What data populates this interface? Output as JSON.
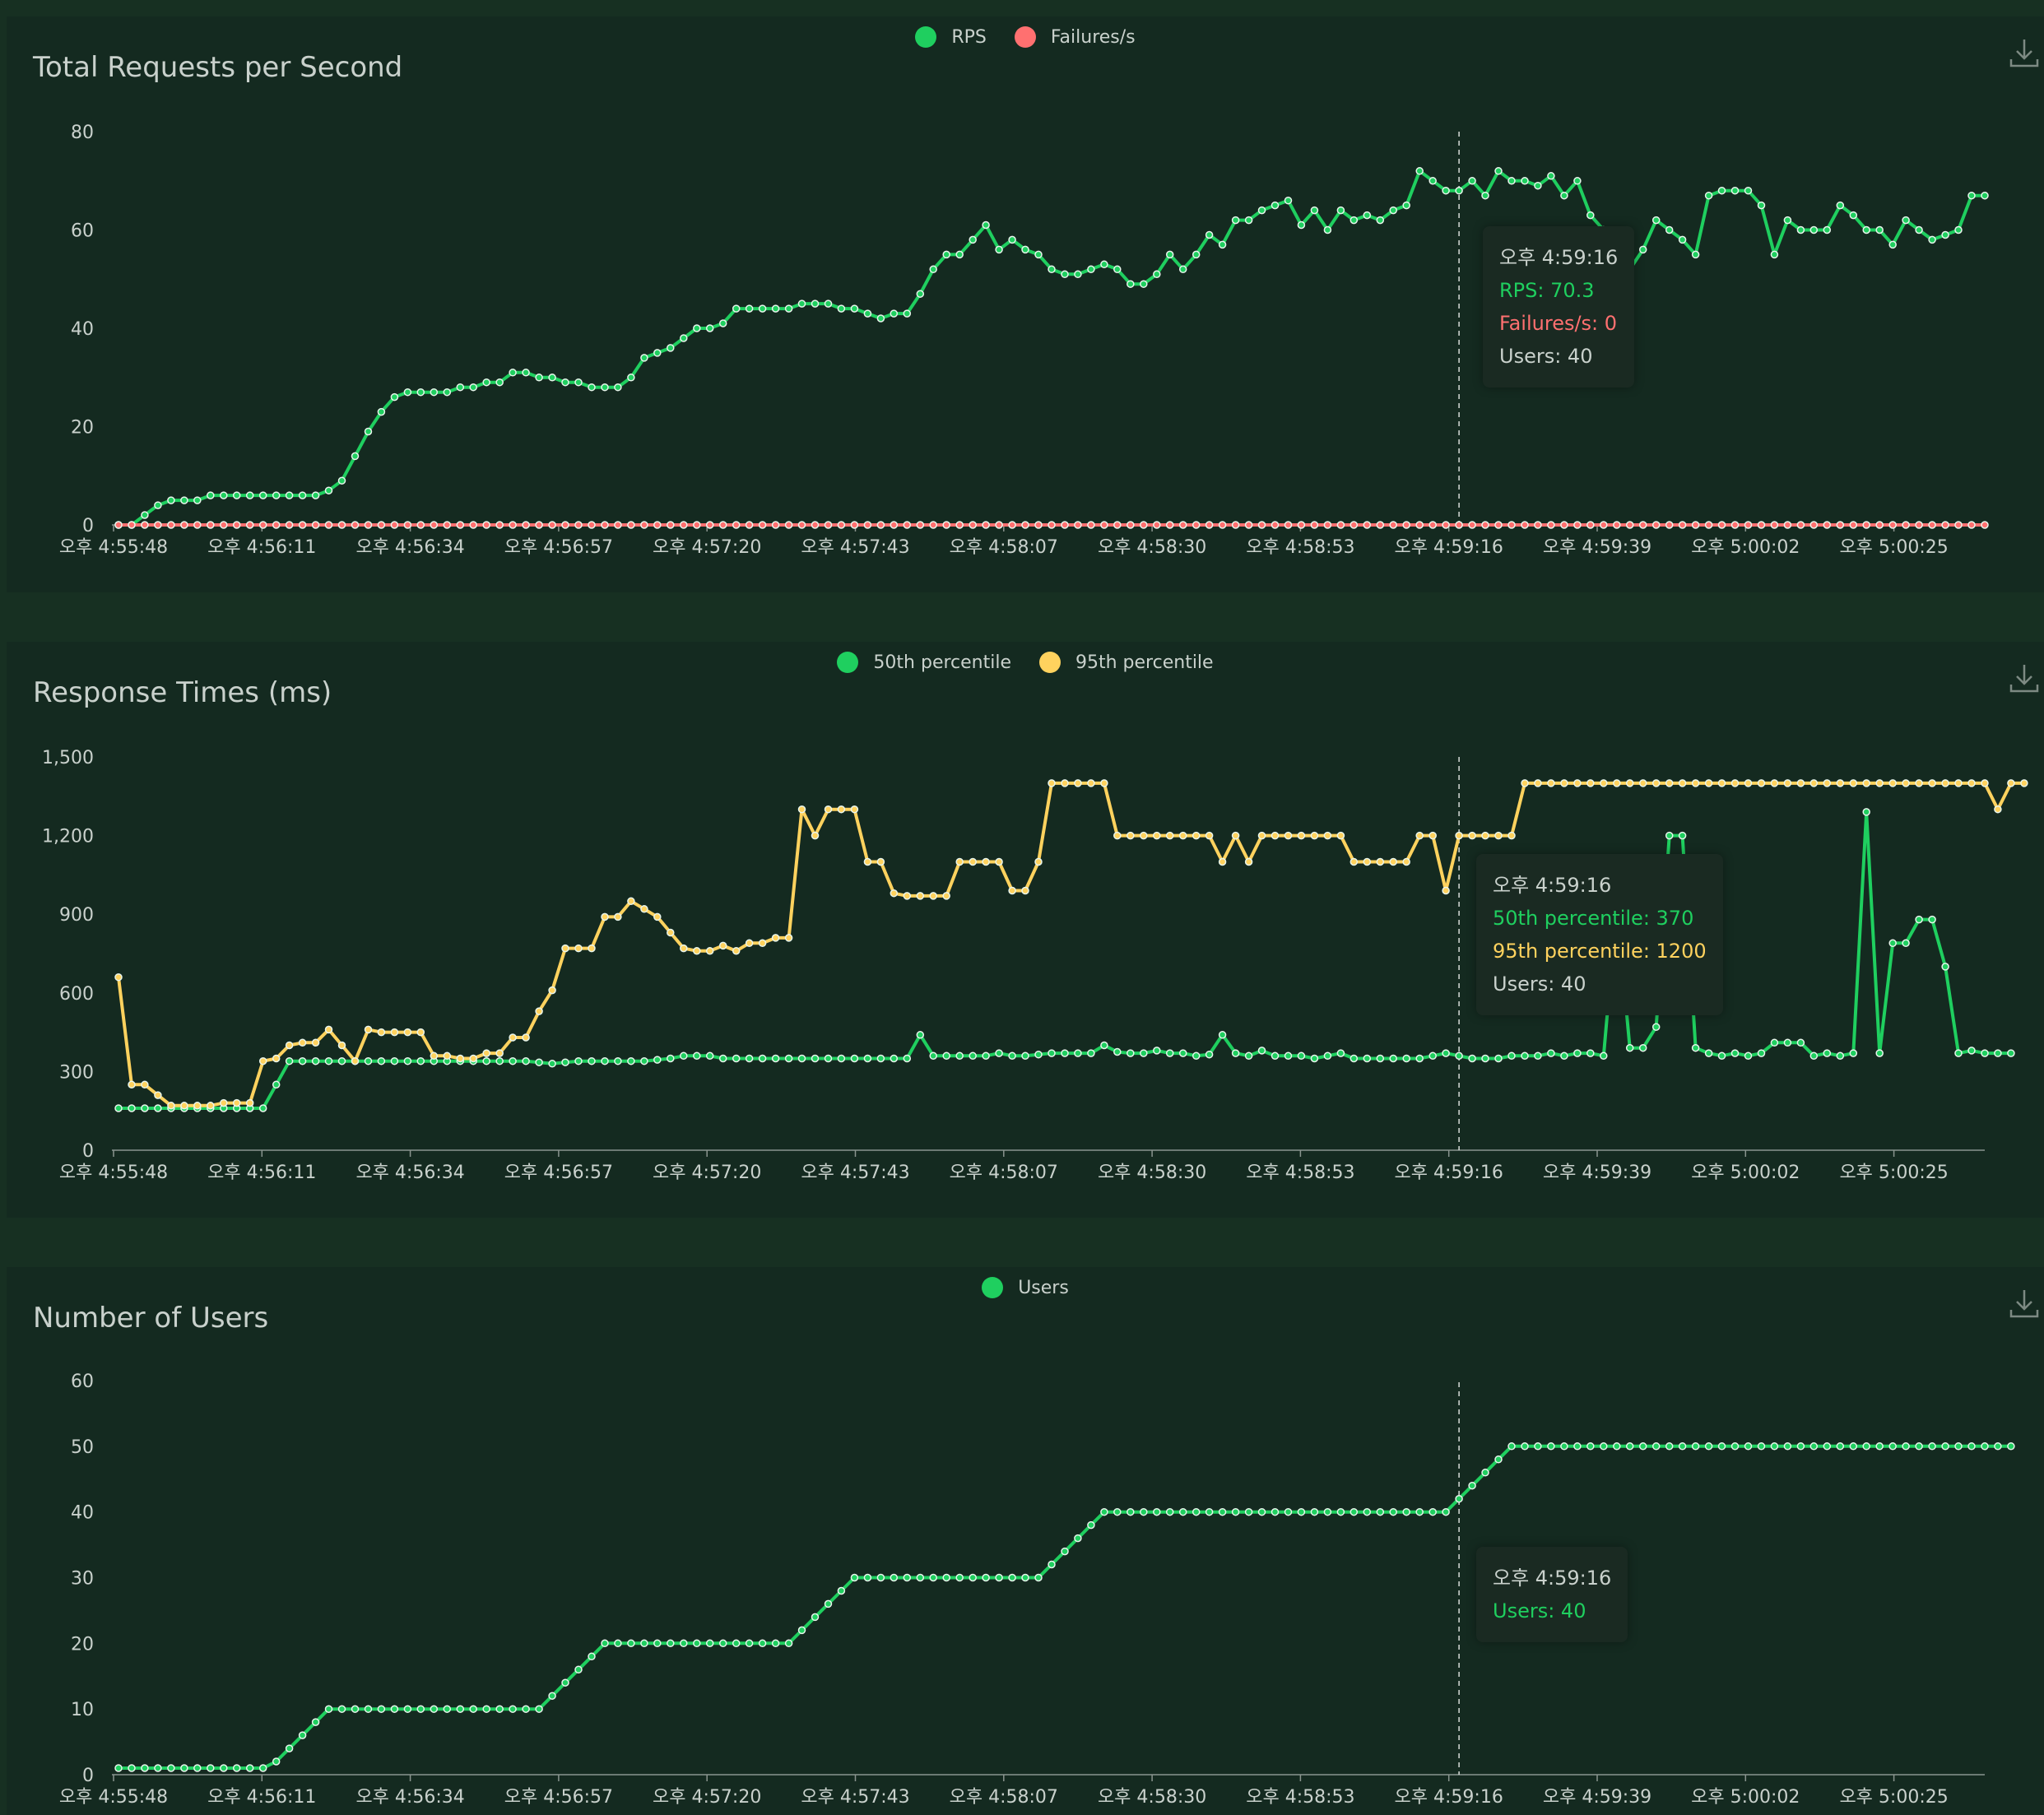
{
  "colors": {
    "rps": "#1fcf5f",
    "failures": "#ff7070",
    "p50": "#1fcf5f",
    "p95": "#ffd25e",
    "users": "#1fcf5f",
    "grid": "#8a958f",
    "bg": "#142a20"
  },
  "time_labels": [
    "오후 4:55:48",
    "오후 4:56:11",
    "오후 4:56:34",
    "오후 4:56:57",
    "오후 4:57:20",
    "오후 4:57:43",
    "오후 4:58:07",
    "오후 4:58:30",
    "오후 4:58:53",
    "오후 4:59:16",
    "오후 4:59:39",
    "오후 5:00:02",
    "오후 5:00:25"
  ],
  "chart_data": [
    {
      "type": "line",
      "title": "Total Requests per Second",
      "legend": [
        "RPS",
        "Failures/s"
      ],
      "ylim": [
        0,
        80
      ],
      "yticks": [
        "0",
        "20",
        "40",
        "60",
        "80"
      ],
      "ytick_values": [
        0,
        20,
        40,
        60,
        80
      ],
      "sample_count": 142,
      "series": [
        {
          "name": "RPS",
          "values": [
            0,
            0,
            2,
            4,
            5,
            5,
            5,
            6,
            6,
            6,
            6,
            6,
            6,
            6,
            6,
            6,
            7,
            9,
            14,
            19,
            23,
            26,
            27,
            27,
            27,
            27,
            28,
            28,
            29,
            29,
            31,
            31,
            30,
            30,
            29,
            29,
            28,
            28,
            28,
            30,
            34,
            35,
            36,
            38,
            40,
            40,
            41,
            44,
            44,
            44,
            44,
            44,
            45,
            45,
            45,
            44,
            44,
            43,
            42,
            43,
            43,
            47,
            52,
            55,
            55,
            58,
            61,
            56,
            58,
            56,
            55,
            52,
            51,
            51,
            52,
            53,
            52,
            49,
            49,
            51,
            55,
            52,
            55,
            59,
            57,
            62,
            62,
            64,
            65,
            66,
            61,
            64,
            60,
            64,
            62,
            63,
            62,
            64,
            65,
            72,
            70,
            68,
            68,
            70,
            67,
            72,
            70,
            70,
            69,
            71,
            67,
            70,
            63,
            60,
            56,
            52,
            56,
            62,
            60,
            58,
            55,
            67,
            68,
            68,
            68,
            65,
            55,
            62,
            60,
            60,
            60,
            65,
            63,
            60,
            60,
            57,
            62,
            60,
            58,
            59,
            60,
            67,
            67
          ]
        },
        {
          "name": "Failures/s",
          "values": [
            0,
            0,
            0,
            0,
            0,
            0,
            0,
            0,
            0,
            0,
            0,
            0,
            0,
            0,
            0,
            0,
            0,
            0,
            0,
            0,
            0,
            0,
            0,
            0,
            0,
            0,
            0,
            0,
            0,
            0,
            0,
            0,
            0,
            0,
            0,
            0,
            0,
            0,
            0,
            0,
            0,
            0,
            0,
            0,
            0,
            0,
            0,
            0,
            0,
            0,
            0,
            0,
            0,
            0,
            0,
            0,
            0,
            0,
            0,
            0,
            0,
            0,
            0,
            0,
            0,
            0,
            0,
            0,
            0,
            0,
            0,
            0,
            0,
            0,
            0,
            0,
            0,
            0,
            0,
            0,
            0,
            0,
            0,
            0,
            0,
            0,
            0,
            0,
            0,
            0,
            0,
            0,
            0,
            0,
            0,
            0,
            0,
            0,
            0,
            0,
            0,
            0,
            0,
            0,
            0,
            0,
            0,
            0,
            0,
            0,
            0,
            0,
            0,
            0,
            0,
            0,
            0,
            0,
            0,
            0,
            0,
            0,
            0,
            0,
            0,
            0,
            0,
            0,
            0,
            0,
            0,
            0,
            0,
            0,
            0,
            0,
            0,
            0,
            0,
            0,
            0,
            0,
            0
          ]
        }
      ],
      "tooltip": {
        "time": "오후 4:59:16",
        "lines": [
          "RPS: 70.3",
          "Failures/s: 0",
          "Users: 40"
        ]
      }
    },
    {
      "type": "line",
      "title": "Response Times (ms)",
      "legend": [
        "50th percentile",
        "95th percentile"
      ],
      "ylim": [
        0,
        1500
      ],
      "yticks": [
        "0",
        "300",
        "600",
        "900",
        "1,200",
        "1,500"
      ],
      "ytick_values": [
        0,
        300,
        600,
        900,
        1200,
        1500
      ],
      "sample_count": 142,
      "series": [
        {
          "name": "50th percentile",
          "values": [
            160,
            160,
            160,
            160,
            160,
            160,
            160,
            160,
            160,
            160,
            160,
            160,
            250,
            340,
            340,
            340,
            340,
            340,
            340,
            340,
            340,
            340,
            340,
            340,
            340,
            340,
            340,
            340,
            340,
            340,
            340,
            340,
            335,
            330,
            335,
            340,
            340,
            340,
            340,
            340,
            340,
            345,
            350,
            360,
            360,
            360,
            350,
            350,
            350,
            350,
            350,
            350,
            350,
            350,
            350,
            350,
            350,
            350,
            350,
            350,
            350,
            440,
            360,
            360,
            360,
            360,
            360,
            370,
            360,
            360,
            365,
            370,
            370,
            370,
            370,
            400,
            375,
            370,
            370,
            380,
            370,
            370,
            360,
            365,
            440,
            370,
            360,
            380,
            360,
            360,
            360,
            350,
            360,
            370,
            350,
            350,
            350,
            350,
            350,
            350,
            360,
            370,
            360,
            350,
            350,
            350,
            360,
            360,
            360,
            370,
            360,
            370,
            370,
            360,
            930,
            390,
            390,
            470,
            1200,
            1200,
            390,
            370,
            360,
            370,
            360,
            370,
            410,
            410,
            410,
            360,
            370,
            360,
            370,
            1290,
            370,
            790,
            790,
            880,
            880,
            700,
            370,
            380,
            370,
            370,
            370
          ]
        },
        {
          "name": "95th percentile",
          "values": [
            660,
            250,
            250,
            210,
            170,
            170,
            170,
            170,
            180,
            180,
            180,
            340,
            350,
            400,
            410,
            410,
            460,
            400,
            340,
            460,
            450,
            450,
            450,
            450,
            360,
            360,
            350,
            350,
            370,
            370,
            430,
            430,
            530,
            610,
            770,
            770,
            770,
            890,
            890,
            950,
            920,
            890,
            830,
            770,
            760,
            760,
            780,
            760,
            790,
            790,
            810,
            810,
            1300,
            1200,
            1300,
            1300,
            1300,
            1100,
            1100,
            980,
            970,
            970,
            970,
            970,
            1100,
            1100,
            1100,
            1100,
            990,
            990,
            1100,
            1400,
            1400,
            1400,
            1400,
            1400,
            1200,
            1200,
            1200,
            1200,
            1200,
            1200,
            1200,
            1200,
            1100,
            1200,
            1100,
            1200,
            1200,
            1200,
            1200,
            1200,
            1200,
            1200,
            1100,
            1100,
            1100,
            1100,
            1100,
            1200,
            1200,
            990,
            1200,
            1200,
            1200,
            1200,
            1200,
            1400,
            1400,
            1400,
            1400,
            1400,
            1400,
            1400,
            1400,
            1400,
            1400,
            1400,
            1400,
            1400,
            1400,
            1400,
            1400,
            1400,
            1400,
            1400,
            1400,
            1400,
            1400,
            1400,
            1400,
            1400,
            1400,
            1400,
            1400,
            1400,
            1400,
            1400,
            1400,
            1400,
            1400,
            1400,
            1400,
            1300,
            1400,
            1400
          ]
        }
      ],
      "tooltip": {
        "time": "오후 4:59:16",
        "lines": [
          "50th percentile: 370",
          "95th percentile: 1200",
          "Users: 40"
        ]
      }
    },
    {
      "type": "line",
      "title": "Number of Users",
      "legend": [
        "Users"
      ],
      "ylim": [
        0,
        60
      ],
      "yticks": [
        "0",
        "10",
        "20",
        "30",
        "40",
        "50",
        "60"
      ],
      "ytick_values": [
        0,
        10,
        20,
        30,
        40,
        50,
        60
      ],
      "sample_count": 142,
      "series": [
        {
          "name": "Users",
          "values": [
            1,
            1,
            1,
            1,
            1,
            1,
            1,
            1,
            1,
            1,
            1,
            1,
            2,
            4,
            6,
            8,
            10,
            10,
            10,
            10,
            10,
            10,
            10,
            10,
            10,
            10,
            10,
            10,
            10,
            10,
            10,
            10,
            10,
            12,
            14,
            16,
            18,
            20,
            20,
            20,
            20,
            20,
            20,
            20,
            20,
            20,
            20,
            20,
            20,
            20,
            20,
            20,
            22,
            24,
            26,
            28,
            30,
            30,
            30,
            30,
            30,
            30,
            30,
            30,
            30,
            30,
            30,
            30,
            30,
            30,
            30,
            32,
            34,
            36,
            38,
            40,
            40,
            40,
            40,
            40,
            40,
            40,
            40,
            40,
            40,
            40,
            40,
            40,
            40,
            40,
            40,
            40,
            40,
            40,
            40,
            40,
            40,
            40,
            40,
            40,
            40,
            40,
            42,
            44,
            46,
            48,
            50,
            50,
            50,
            50,
            50,
            50,
            50,
            50,
            50,
            50,
            50,
            50,
            50,
            50,
            50,
            50,
            50,
            50,
            50,
            50,
            50,
            50,
            50,
            50,
            50,
            50,
            50,
            50,
            50,
            50,
            50,
            50,
            50,
            50,
            50,
            50,
            50,
            50,
            50
          ]
        }
      ],
      "tooltip": {
        "time": "오후 4:59:16",
        "lines": [
          "Users: 40"
        ]
      }
    }
  ]
}
